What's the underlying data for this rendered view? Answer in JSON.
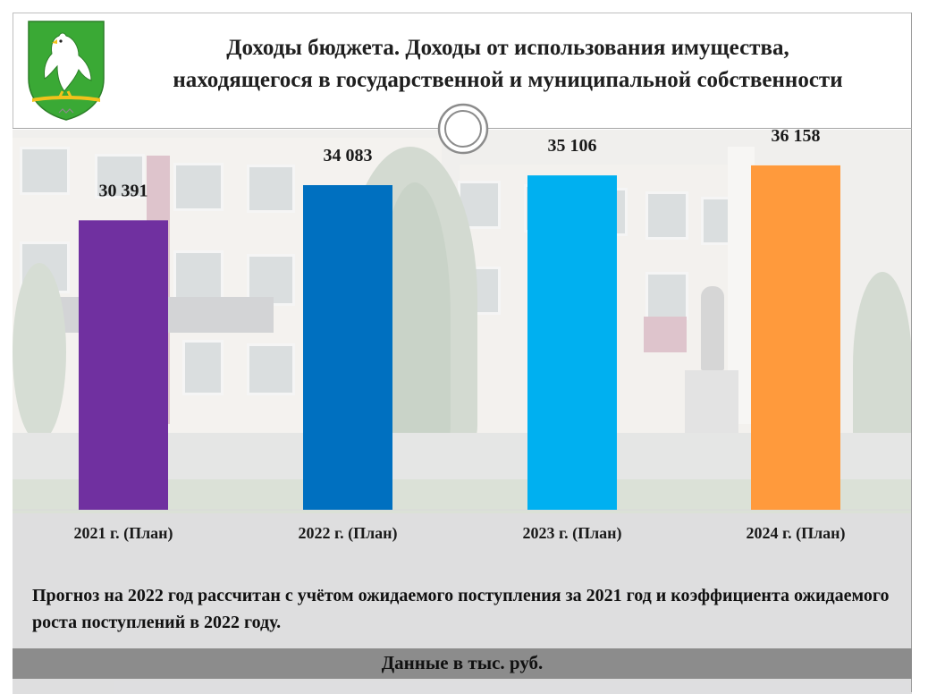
{
  "header": {
    "title_line1": "Доходы бюджета. Доходы от использования имущества,",
    "title_line2": "находящегося в государственной и муниципальной собственности"
  },
  "chart_data": {
    "type": "bar",
    "categories": [
      "2021 г. (План)",
      "2022 г. (План)",
      "2023 г. (План)",
      "2024 г. (План)"
    ],
    "values": [
      30391,
      34083,
      35106,
      36158
    ],
    "value_labels": [
      "30 391",
      "34 083",
      "35 106",
      "36 158"
    ],
    "colors": [
      "#7030a0",
      "#0070c0",
      "#00b0f0",
      "#ff9a3c"
    ],
    "ylim": [
      0,
      40000
    ],
    "grid": false,
    "legend": "none"
  },
  "note": "Прогноз на 2022 год рассчитан с учётом ожидаемого поступления за 2021 год и коэффициента ожидаемого роста поступлений в 2022 году.",
  "footer": "Данные в тыс. руб.",
  "colors": {
    "footer_bg": "#8c8c8c",
    "coat_green": "#3aa935"
  },
  "icons": {
    "coat_of_arms": "coat-of-arms-icon",
    "ring": "ring-icon"
  }
}
